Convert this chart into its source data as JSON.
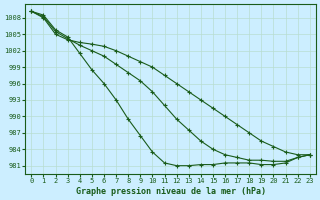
{
  "title": "Graphe pression niveau de la mer (hPa)",
  "background_color": "#cceeff",
  "grid_color": "#b8ddd0",
  "line_color": "#1a5c1a",
  "xlim": [
    -0.5,
    23.5
  ],
  "ylim": [
    979.5,
    1010.5
  ],
  "yticks": [
    981,
    984,
    987,
    990,
    993,
    996,
    999,
    1002,
    1005,
    1008
  ],
  "xticks": [
    0,
    1,
    2,
    3,
    4,
    5,
    6,
    7,
    8,
    9,
    10,
    11,
    12,
    13,
    14,
    15,
    16,
    17,
    18,
    19,
    20,
    21,
    22,
    23
  ],
  "series": [
    [
      1009.2,
      1008.0,
      1005.0,
      1004.0,
      1003.5,
      1003.2,
      1002.8,
      1002.0,
      1001.0,
      1000.0,
      999.0,
      997.5,
      996.0,
      994.5,
      993.0,
      991.5,
      990.0,
      988.5,
      987.0,
      985.5,
      984.5,
      983.5,
      983.0,
      983.0
    ],
    [
      1009.2,
      1008.2,
      1005.5,
      1004.2,
      1003.0,
      1002.0,
      1001.0,
      999.5,
      998.0,
      996.5,
      994.5,
      992.0,
      989.5,
      987.5,
      985.5,
      984.0,
      983.0,
      982.5,
      982.0,
      982.0,
      981.8,
      981.8,
      982.5,
      983.0
    ],
    [
      1009.2,
      1008.5,
      1005.8,
      1004.5,
      1001.5,
      998.5,
      996.0,
      993.0,
      989.5,
      986.5,
      983.5,
      981.5,
      981.0,
      981.0,
      981.2,
      981.2,
      981.5,
      981.5,
      981.5,
      981.2,
      981.2,
      981.5,
      982.5,
      983.0
    ]
  ]
}
